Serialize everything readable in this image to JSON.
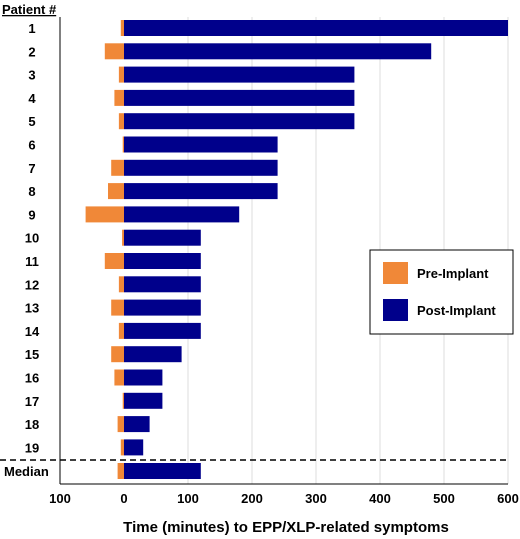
{
  "chart_data": {
    "type": "bar",
    "orientation": "horizontal-stacked-diverging",
    "category_header": "Patient #",
    "categories": [
      "1",
      "2",
      "3",
      "4",
      "5",
      "6",
      "7",
      "8",
      "9",
      "10",
      "11",
      "12",
      "13",
      "14",
      "15",
      "16",
      "17",
      "18",
      "19",
      "Median"
    ],
    "series": [
      {
        "name": "Pre-Implant",
        "color": "#f08838",
        "values": [
          5,
          30,
          8,
          15,
          8,
          2,
          20,
          25,
          60,
          3,
          30,
          8,
          20,
          8,
          20,
          15,
          2,
          10,
          5,
          10
        ]
      },
      {
        "name": "Post-Implant",
        "color": "#00008b",
        "values": [
          600,
          480,
          360,
          360,
          360,
          240,
          240,
          240,
          180,
          120,
          120,
          120,
          120,
          120,
          90,
          60,
          60,
          40,
          30,
          120
        ]
      }
    ],
    "xlabel": "Time (minutes) to EPP/XLP-related symptoms",
    "xlim": [
      -100,
      600
    ],
    "xticks": [
      -100,
      0,
      100,
      200,
      300,
      400,
      500,
      600
    ],
    "xtick_labels": [
      "100",
      "0",
      "100",
      "200",
      "300",
      "400",
      "500",
      "600"
    ],
    "grid": "vertical",
    "legend_position": "right",
    "median_separator": "dashed"
  }
}
